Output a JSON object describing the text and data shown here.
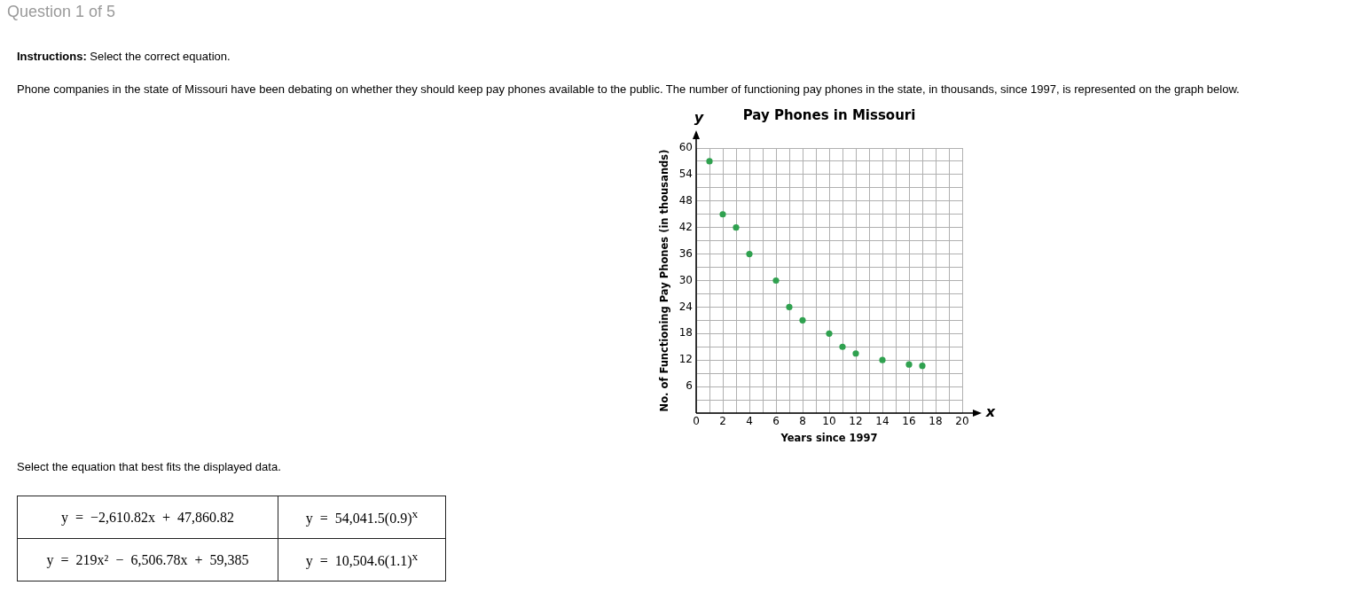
{
  "chart_data": {
    "type": "scatter",
    "title": "Pay Phones in Missouri",
    "xlabel": "Years since 1997",
    "ylabel": "No. of Functioning Pay Phones (in thousands)",
    "x": [
      1,
      2,
      3,
      4,
      6,
      7,
      8,
      10,
      11,
      12,
      14,
      16,
      17
    ],
    "values": [
      57,
      45,
      42,
      36,
      30,
      24,
      21,
      18,
      15,
      13.5,
      12,
      11,
      10.7
    ],
    "color": "#2fa14f",
    "marker": "circle",
    "xlim": [
      0,
      20
    ],
    "ylim": [
      0,
      60
    ],
    "xticks": [
      {
        "value": 0,
        "label": "0"
      },
      {
        "value": 1,
        "label": null
      },
      2,
      {
        "value": 3,
        "label": null
      },
      4,
      {
        "value": 5,
        "label": null
      },
      6,
      {
        "value": 7,
        "label": null
      },
      8,
      {
        "value": 9,
        "label": null
      },
      10,
      {
        "value": 11,
        "label": null
      },
      12,
      {
        "value": 13,
        "label": null
      },
      14,
      {
        "value": 15,
        "label": null
      },
      16,
      {
        "value": 17,
        "label": null
      },
      18,
      {
        "value": 19,
        "label": null
      },
      20
    ],
    "yticks": [
      {
        "value": 0,
        "label": null
      },
      {
        "value": 3,
        "label": null
      },
      6,
      {
        "value": 9,
        "label": null
      },
      12,
      {
        "value": 15,
        "label": null
      },
      18,
      {
        "value": 21,
        "label": null
      },
      24,
      {
        "value": 27,
        "label": null
      },
      30,
      {
        "value": 33,
        "label": null
      },
      36,
      {
        "value": 39,
        "label": null
      },
      42,
      {
        "value": 45,
        "label": null
      },
      48,
      {
        "value": 51,
        "label": null
      },
      54,
      {
        "value": 57,
        "label": null
      },
      60
    ],
    "grid": true,
    "legend": false,
    "annotations": [
      "Question 1 of 5",
      "Instructions: Select the correct equation.",
      "Phone companies in the state of Missouri have been debating on whether they should keep pay phones available to the public. The number of functioning pay phones in the state, in thousands, since 1997, is represented on the graph below.",
      "Select the equation that best fits the displayed data.",
      "y = −2,610.82x + 47,860.82",
      "y = 54,041.5(0.9)$^{x}$",
      "y = 219x² − 6,506.78x + 59,385",
      "y = 10,504.6(1.1)$^{x}$",
      "y",
      "x"
    ]
  }
}
